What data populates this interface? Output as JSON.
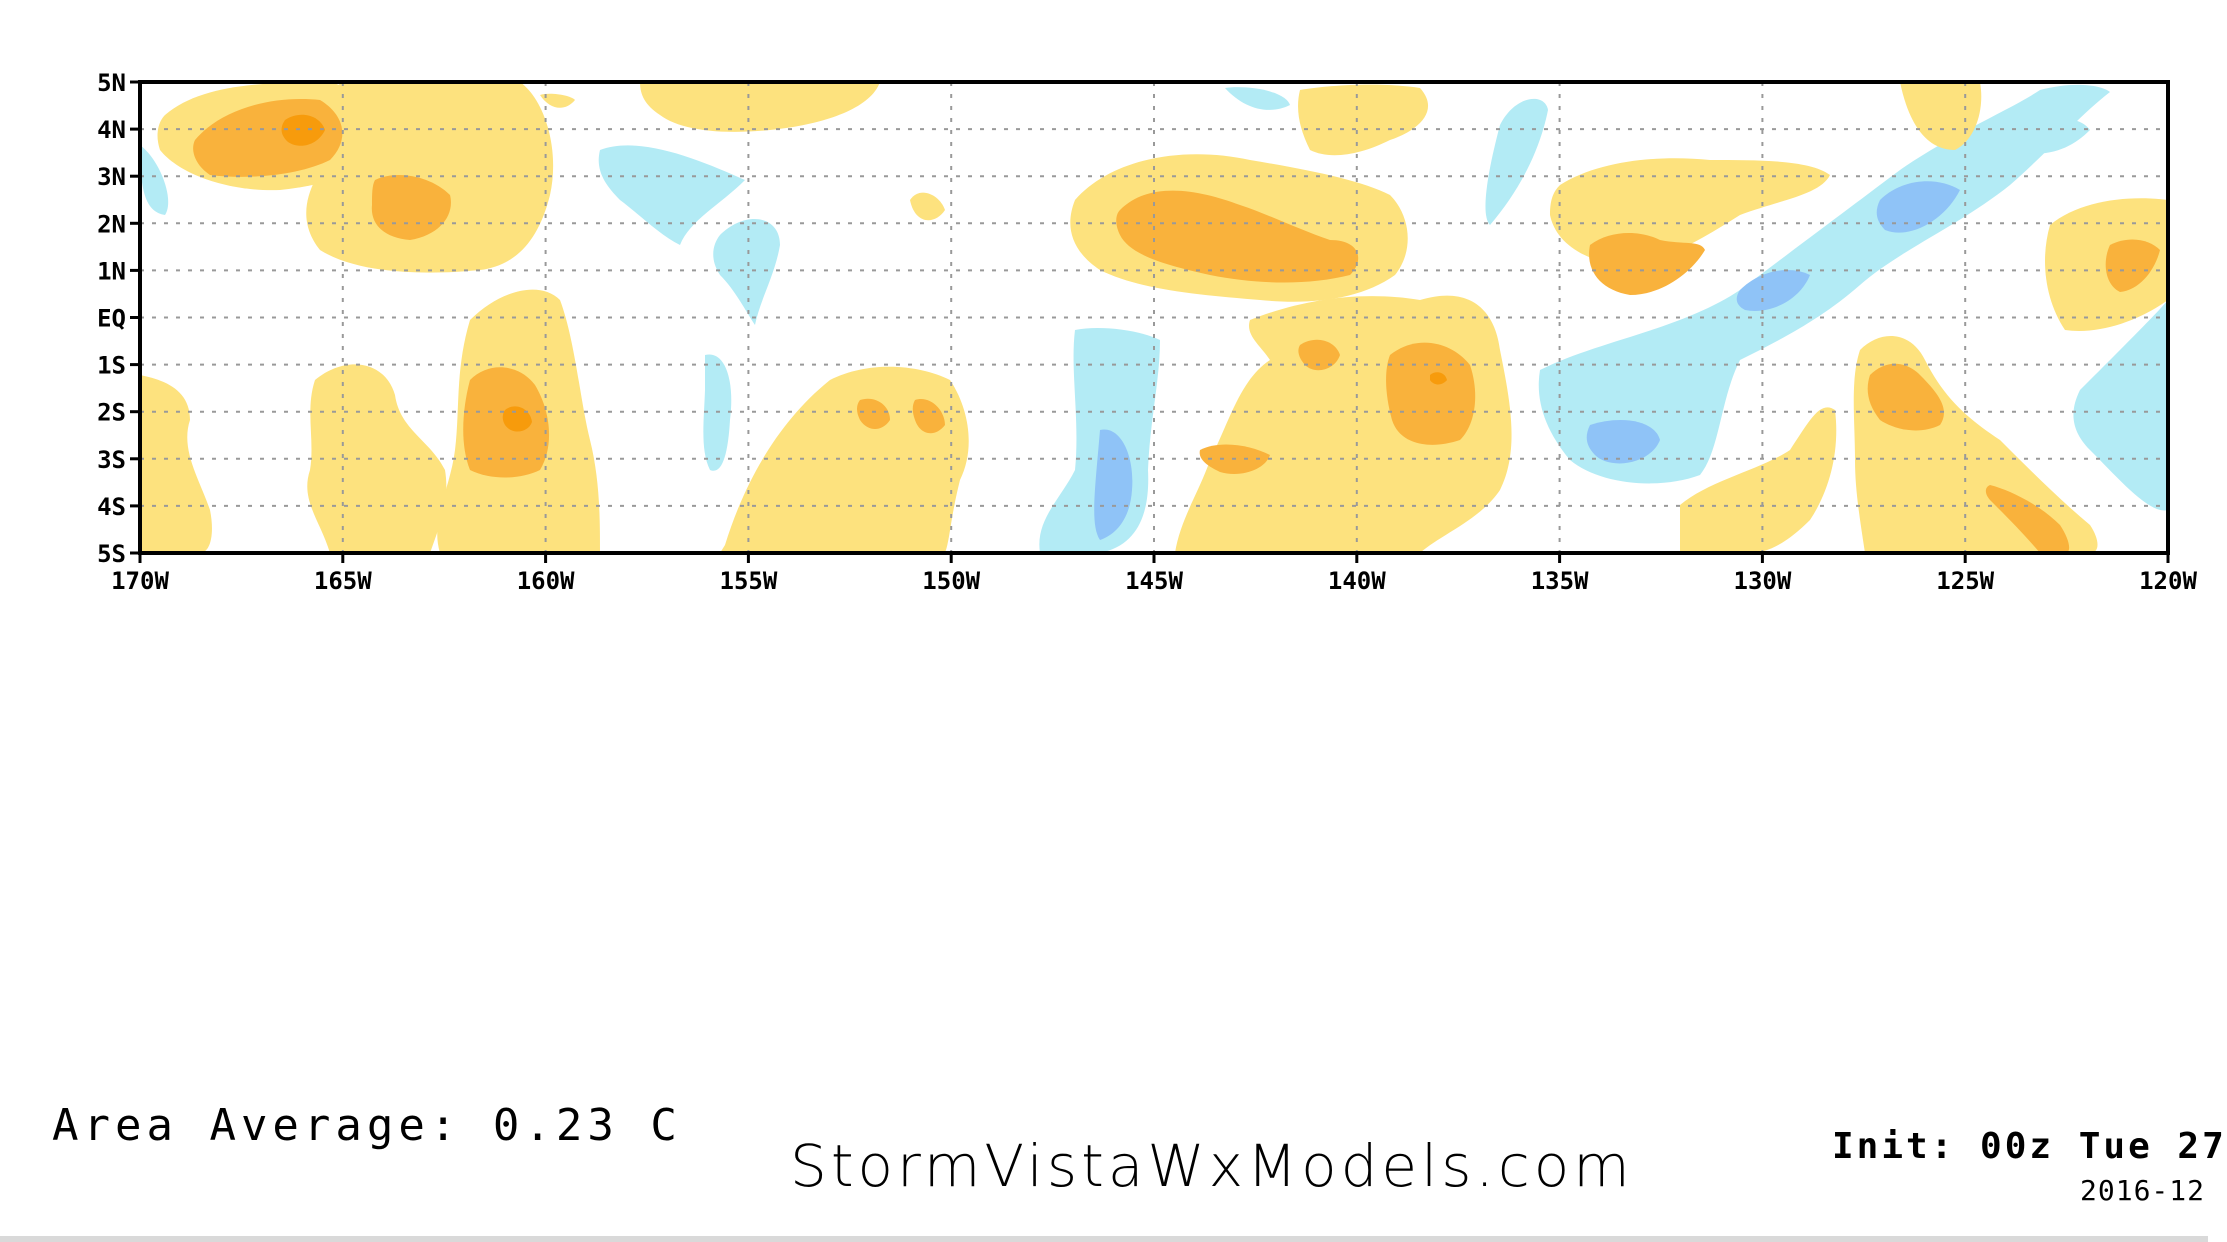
{
  "map": {
    "region": {
      "lon_min": -170,
      "lon_max": -120,
      "lat_min": -5,
      "lat_max": 5
    },
    "y_tick_labels": [
      "5N",
      "4N",
      "3N",
      "2N",
      "1N",
      "EQ",
      "1S",
      "2S",
      "3S",
      "4S",
      "5S"
    ],
    "x_tick_labels": [
      "170W",
      "165W",
      "160W",
      "155W",
      "150W",
      "145W",
      "140W",
      "135W",
      "130W",
      "125W",
      "120W"
    ],
    "grid": true,
    "colors": {
      "warm_light": "#fde27e",
      "warm_medium": "#f9b23c",
      "warm_strong": "#f79b0c",
      "cool_light": "#b3ebf5",
      "cool_medium": "#8fc3f7",
      "frame": "#000000",
      "grid": "#999999"
    }
  },
  "footer": {
    "area_average": "Area Average: 0.23 C",
    "watermark": "StormVistaWxModels.com",
    "init": "Init: 00z Tue 27",
    "date": "2016-12"
  }
}
